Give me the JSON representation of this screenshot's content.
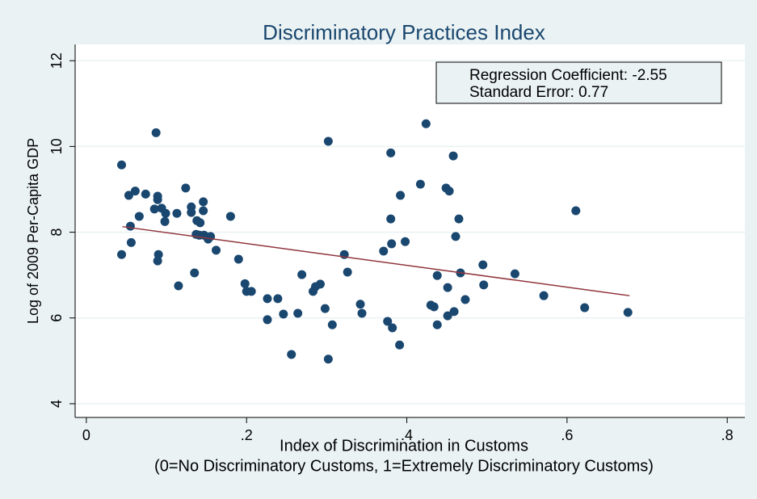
{
  "chart_data": {
    "type": "scatter",
    "title": "Discriminatory Practices Index",
    "x_label": [
      "Index of Discrimination in Customs",
      "(0=No Discriminatory Customs, 1=Extremely Discriminatory Customs)"
    ],
    "y_label": "Log of 2009 Per-Capita GDP",
    "annotations": [
      "Regression Coefficient: -2.55",
      "Standard Error: 0.77"
    ],
    "xlim": [
      -0.014,
      0.822
    ],
    "ylim": [
      3.68,
      12.38
    ],
    "xticks": [
      0,
      {
        "value": 0.2,
        "label": ".2"
      },
      {
        "value": 0.4,
        "label": ".4"
      },
      {
        "value": 0.6,
        "label": ".6"
      },
      {
        "value": 0.8,
        "label": ".8"
      }
    ],
    "yticks": [
      4,
      6,
      8,
      10,
      12
    ],
    "grid": true,
    "series": [
      {
        "color": "#1a476f",
        "x": [
          0.044,
          0.044,
          0.053,
          0.061,
          0.055,
          0.056,
          0.066,
          0.074,
          0.087,
          0.085,
          0.089,
          0.089,
          0.094,
          0.099,
          0.098,
          0.09,
          0.089,
          0.113,
          0.115,
          0.124,
          0.131,
          0.131,
          0.137,
          0.138,
          0.142,
          0.146,
          0.146,
          0.135,
          0.141,
          0.147,
          0.152,
          0.155,
          0.162,
          0.18,
          0.19,
          0.198,
          0.2,
          0.206,
          0.226,
          0.226,
          0.239,
          0.246,
          0.256,
          0.264,
          0.269,
          0.283,
          0.286,
          0.292,
          0.298,
          0.302,
          0.302,
          0.307,
          0.322,
          0.326,
          0.342,
          0.344,
          0.371,
          0.376,
          0.38,
          0.38,
          0.381,
          0.382,
          0.391,
          0.392,
          0.398,
          0.417,
          0.424,
          0.43,
          0.434,
          0.438,
          0.438,
          0.449,
          0.453,
          0.451,
          0.451,
          0.458,
          0.459,
          0.461,
          0.465,
          0.467,
          0.473,
          0.495,
          0.496,
          0.535,
          0.571,
          0.611,
          0.622,
          0.676
        ],
        "values": [
          9.57,
          7.48,
          8.86,
          8.96,
          8.14,
          7.76,
          8.37,
          8.89,
          10.32,
          8.54,
          8.84,
          8.76,
          8.56,
          8.44,
          8.25,
          7.48,
          7.33,
          8.44,
          6.75,
          9.03,
          8.59,
          8.46,
          7.95,
          8.27,
          8.22,
          8.71,
          8.5,
          7.05,
          7.93,
          7.93,
          7.84,
          7.9,
          7.58,
          8.37,
          7.37,
          6.8,
          6.62,
          6.62,
          6.45,
          5.96,
          6.45,
          6.09,
          5.15,
          6.11,
          7.01,
          6.62,
          6.73,
          6.79,
          6.22,
          10.12,
          5.04,
          5.84,
          7.48,
          7.07,
          6.32,
          6.11,
          7.56,
          5.92,
          9.85,
          8.31,
          7.73,
          5.77,
          5.37,
          8.86,
          7.78,
          9.12,
          10.53,
          6.3,
          6.26,
          6.99,
          5.84,
          9.03,
          8.96,
          6.71,
          6.05,
          9.78,
          6.15,
          7.9,
          8.31,
          7.05,
          6.43,
          7.24,
          6.77,
          7.03,
          6.52,
          8.5,
          6.24,
          6.13
        ]
      },
      {
        "type": "line",
        "color": "#90353b",
        "x": [
          0.045,
          0.678
        ],
        "values": [
          8.13,
          6.52
        ]
      }
    ]
  }
}
